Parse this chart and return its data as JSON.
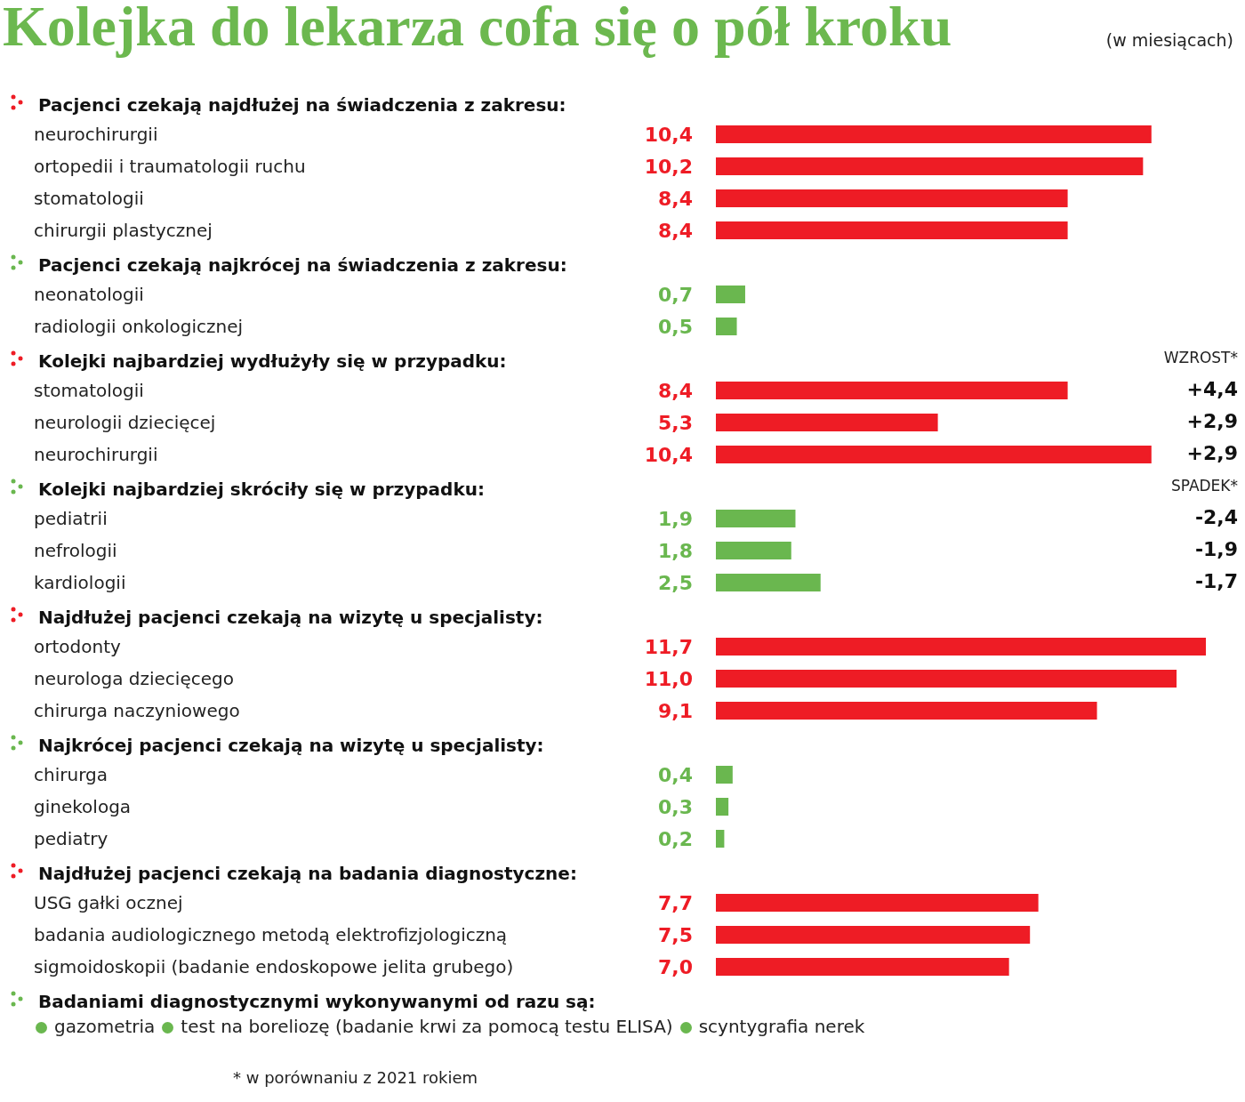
{
  "chart_data": [
    {
      "type": "other",
      "title": "Kolejka do lekarza cofa się o pół kroku",
      "subtitle": "(w miesiącach)"
    },
    {
      "type": "bar",
      "orientation": "horizontal",
      "title": "Pacjenci czekają najdłużej na świadczenia z zakresu:",
      "categories": [
        "neurochirurgii",
        "ortopedii i traumatologii ruchu",
        "stomatologii",
        "chirurgii plastycznej"
      ],
      "values": [
        10.4,
        10.2,
        8.4,
        8.4
      ],
      "value_labels": [
        "10,4",
        "10,2",
        "8,4",
        "8,4"
      ],
      "color": "#ee1c25"
    },
    {
      "type": "bar",
      "orientation": "horizontal",
      "title": "Pacjenci czekają najkrócej na świadczenia z zakresu:",
      "categories": [
        "neonatologii",
        "radiologii onkologicznej"
      ],
      "values": [
        0.7,
        0.5
      ],
      "value_labels": [
        "0,7",
        "0,5"
      ],
      "color": "#6ab74f"
    },
    {
      "type": "bar",
      "orientation": "horizontal",
      "title": "Kolejki najbardziej wydłużyły się w przypadku:",
      "categories": [
        "stomatologii",
        "neurologii dziecięcej",
        "neurochirurgii"
      ],
      "values": [
        8.4,
        5.3,
        10.4
      ],
      "value_labels": [
        "8,4",
        "5,3",
        "10,4"
      ],
      "color": "#ee1c25",
      "annotations": [
        "WZROST*",
        "+4,4",
        "+2,9",
        "+2,9"
      ]
    },
    {
      "type": "bar",
      "orientation": "horizontal",
      "title": "Kolejki najbardziej skróciły się w przypadku:",
      "categories": [
        "pediatrii",
        "nefrologii",
        "kardiologii"
      ],
      "values": [
        1.9,
        1.8,
        2.5
      ],
      "value_labels": [
        "1,9",
        "1,8",
        "2,5"
      ],
      "color": "#6ab74f",
      "annotations": [
        "SPADEK*",
        "-2,4",
        "-1,9",
        "-1,7"
      ]
    },
    {
      "type": "bar",
      "orientation": "horizontal",
      "title": "Najdłużej pacjenci czekają na wizytę u specjalisty:",
      "categories": [
        "ortodonty",
        "neurologa dziecięcego",
        "chirurga naczyniowego"
      ],
      "values": [
        11.7,
        11.0,
        9.1
      ],
      "value_labels": [
        "11,7",
        "11,0",
        "9,1"
      ],
      "color": "#ee1c25"
    },
    {
      "type": "bar",
      "orientation": "horizontal",
      "title": "Najkrócej pacjenci czekają na wizytę u specjalisty:",
      "categories": [
        "chirurga",
        "ginekologa",
        "pediatry"
      ],
      "values": [
        0.4,
        0.3,
        0.2
      ],
      "value_labels": [
        "0,4",
        "0,3",
        "0,2"
      ],
      "color": "#6ab74f"
    },
    {
      "type": "bar",
      "orientation": "horizontal",
      "title": "Najdłużej pacjenci czekają na badania diagnostyczne:",
      "categories": [
        "USG gałki ocznej",
        "badania audiologicznego metodą elektrofizjologiczną",
        "sigmoidoskopii (badanie endoskopowe jelita grubego)"
      ],
      "values": [
        7.7,
        7.5,
        7.0
      ],
      "value_labels": [
        "7,7",
        "7,5",
        "7,0"
      ],
      "color": "#ee1c25"
    },
    {
      "type": "other",
      "title": "Badaniami diagnostycznymi wykonywanymi od razu są:",
      "categories": [
        "gazometria",
        "test na boreliozę (badanie krwi za pomocą testu ELISA)",
        "scyntygrafia nerek"
      ],
      "color": "#6ab74f",
      "annotations": [
        "* w porównaniu z 2021 rokiem"
      ]
    }
  ]
}
